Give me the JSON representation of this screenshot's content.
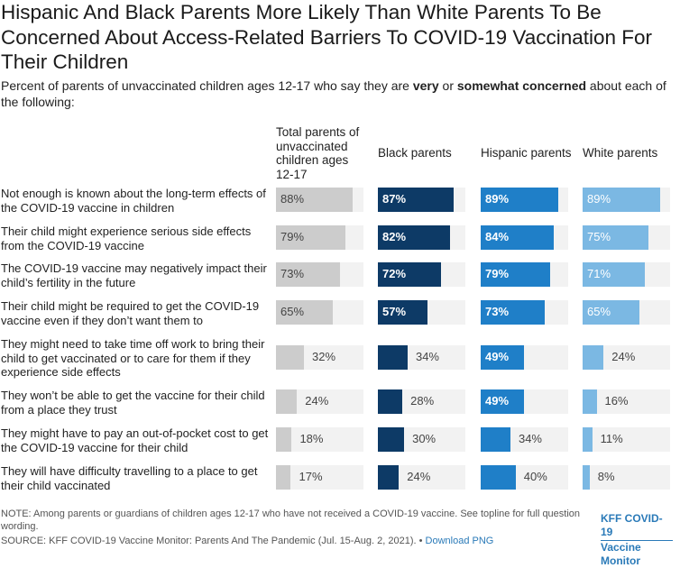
{
  "title": "Hispanic And Black Parents More Likely Than White Parents To Be Concerned About Access-Related Barriers To COVID-19 Vaccination For Their Children",
  "subtitle": {
    "pre": "Percent of parents of unvaccinated children ages 12-17 who say they are ",
    "bold1": "very",
    "mid": " or ",
    "bold2": "somewhat concerned",
    "post": " about each of the following:"
  },
  "colors": {
    "total": "#cccccc",
    "black": "#0d3a66",
    "hispanic": "#1f7fc8",
    "white": "#7bb8e3",
    "track": "#f2f2f2"
  },
  "note": "NOTE: Among parents or guardians of children ages 12-17 who have not received a COVID-19 vaccine. See topline for full question wording.",
  "source": "SOURCE: KFF COVID-19 Vaccine Monitor: Parents And The Pandemic (Jul. 15-Aug. 2, 2021). •",
  "download_label": "Download PNG",
  "logo": {
    "line1": "KFF COVID-19",
    "line2": "Vaccine Monitor"
  },
  "chart_data": {
    "type": "bar",
    "orientation": "horizontal",
    "categories": [
      "Not enough is known about the long-term effects of the COVID-19 vaccine in children",
      "Their child might experience serious side effects from the COVID-19 vaccine",
      "The COVID-19 vaccine may negatively impact their child’s fertility in the future",
      "Their child might be required to get the COVID-19 vaccine even if they don’t want them to",
      "They might need to take time off work to bring their child to get vaccinated or to care for them if they experience side effects",
      "They won’t be able to get the vaccine for their child from a place they trust",
      "They might have to pay an out-of-pocket cost to get the COVID-19 vaccine for their child",
      "They will have difficulty travelling to a place to get their child vaccinated"
    ],
    "series": [
      {
        "name": "Total parents of unvaccinated children ages 12-17",
        "color": "#cccccc",
        "values": [
          88,
          79,
          73,
          65,
          32,
          24,
          18,
          17
        ]
      },
      {
        "name": "Black parents",
        "color": "#0d3a66",
        "values": [
          87,
          82,
          72,
          57,
          34,
          28,
          30,
          24
        ]
      },
      {
        "name": "Hispanic parents",
        "color": "#1f7fc8",
        "values": [
          89,
          84,
          79,
          73,
          49,
          49,
          34,
          40
        ]
      },
      {
        "name": "White parents",
        "color": "#7bb8e3",
        "values": [
          89,
          75,
          71,
          65,
          24,
          16,
          11,
          8
        ]
      }
    ],
    "value_suffix": "%",
    "xlim": [
      0,
      100
    ],
    "grid": false,
    "legend": "column headers"
  }
}
